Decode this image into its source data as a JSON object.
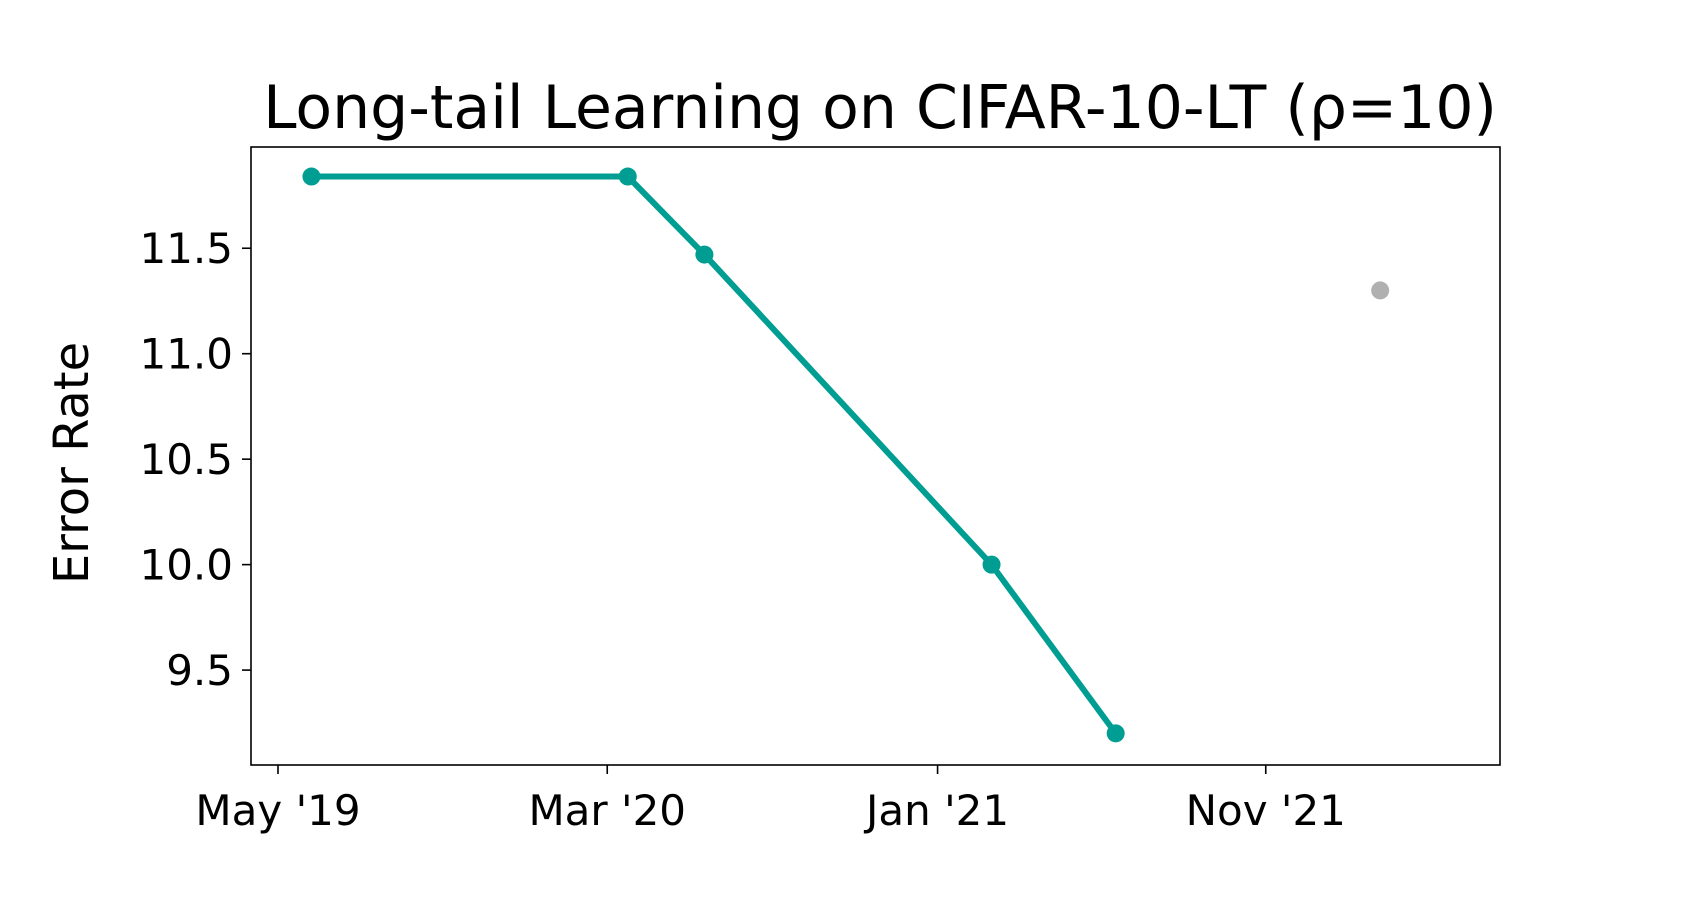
{
  "chart_data": {
    "type": "line",
    "title": "Long-tail Learning on CIFAR-10-LT (ρ=10)",
    "xlabel": "",
    "ylabel": "Error Rate",
    "x_tick_labels": [
      "May '19",
      "Mar '20",
      "Jan '21",
      "Nov '21"
    ],
    "x_ticks": [
      "2019-05-01",
      "2020-03-01",
      "2021-01-01",
      "2021-11-01"
    ],
    "xlim": [
      "2019-04-06",
      "2022-06-06"
    ],
    "ylim": [
      9.05,
      11.98
    ],
    "y_ticks": [
      9.5,
      10.0,
      10.5,
      11.0,
      11.5
    ],
    "y_tick_labels": [
      "9.5",
      "10.0",
      "10.5",
      "11.0",
      "11.5"
    ],
    "grid": false,
    "series": [
      {
        "color": "#009e92",
        "x": [
          "2019-06-01",
          "2020-03-20",
          "2020-05-30",
          "2021-02-20",
          "2021-06-15"
        ],
        "y": [
          11.84,
          11.84,
          11.47,
          10.0,
          9.2
        ]
      },
      {
        "color": "#b0b0b0",
        "x": [
          "2022-02-15"
        ],
        "y": [
          11.3
        ]
      }
    ]
  }
}
